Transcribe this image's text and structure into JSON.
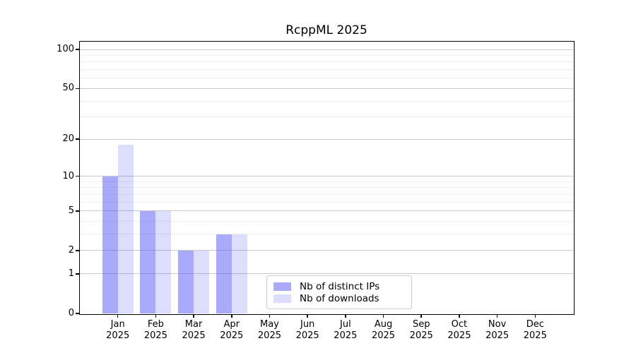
{
  "chart_data": {
    "type": "bar",
    "title": "RcppML 2025",
    "categories": [
      "Jan",
      "Feb",
      "Mar",
      "Apr",
      "May",
      "Jun",
      "Jul",
      "Aug",
      "Sep",
      "Oct",
      "Nov",
      "Dec"
    ],
    "x_tick_second_line": "2025",
    "series": [
      {
        "name": "Nb of distinct IPs",
        "color": "rgba(85,85,245,0.5)",
        "values": [
          10,
          5,
          2,
          3,
          0,
          0,
          0,
          0,
          0,
          0,
          0,
          0
        ]
      },
      {
        "name": "Nb of downloads",
        "color": "rgba(85,85,245,0.2)",
        "values": [
          18,
          5,
          2,
          3,
          0,
          0,
          0,
          0,
          0,
          0,
          0,
          0
        ]
      }
    ],
    "y_axis": {
      "scale": "log10(value+1)",
      "major_ticks": [
        100,
        50,
        20,
        10,
        5,
        2,
        1,
        0
      ],
      "minor_gridline_values": [
        3,
        4,
        6,
        7,
        8,
        9,
        30,
        40,
        60,
        70,
        80,
        90
      ],
      "top_value": 115
    },
    "grid": {
      "major_color": "#c9c9c9",
      "minor_color": "#ececec"
    },
    "legend": {
      "position": "bottom-center",
      "border_color": "#cccccc"
    }
  }
}
